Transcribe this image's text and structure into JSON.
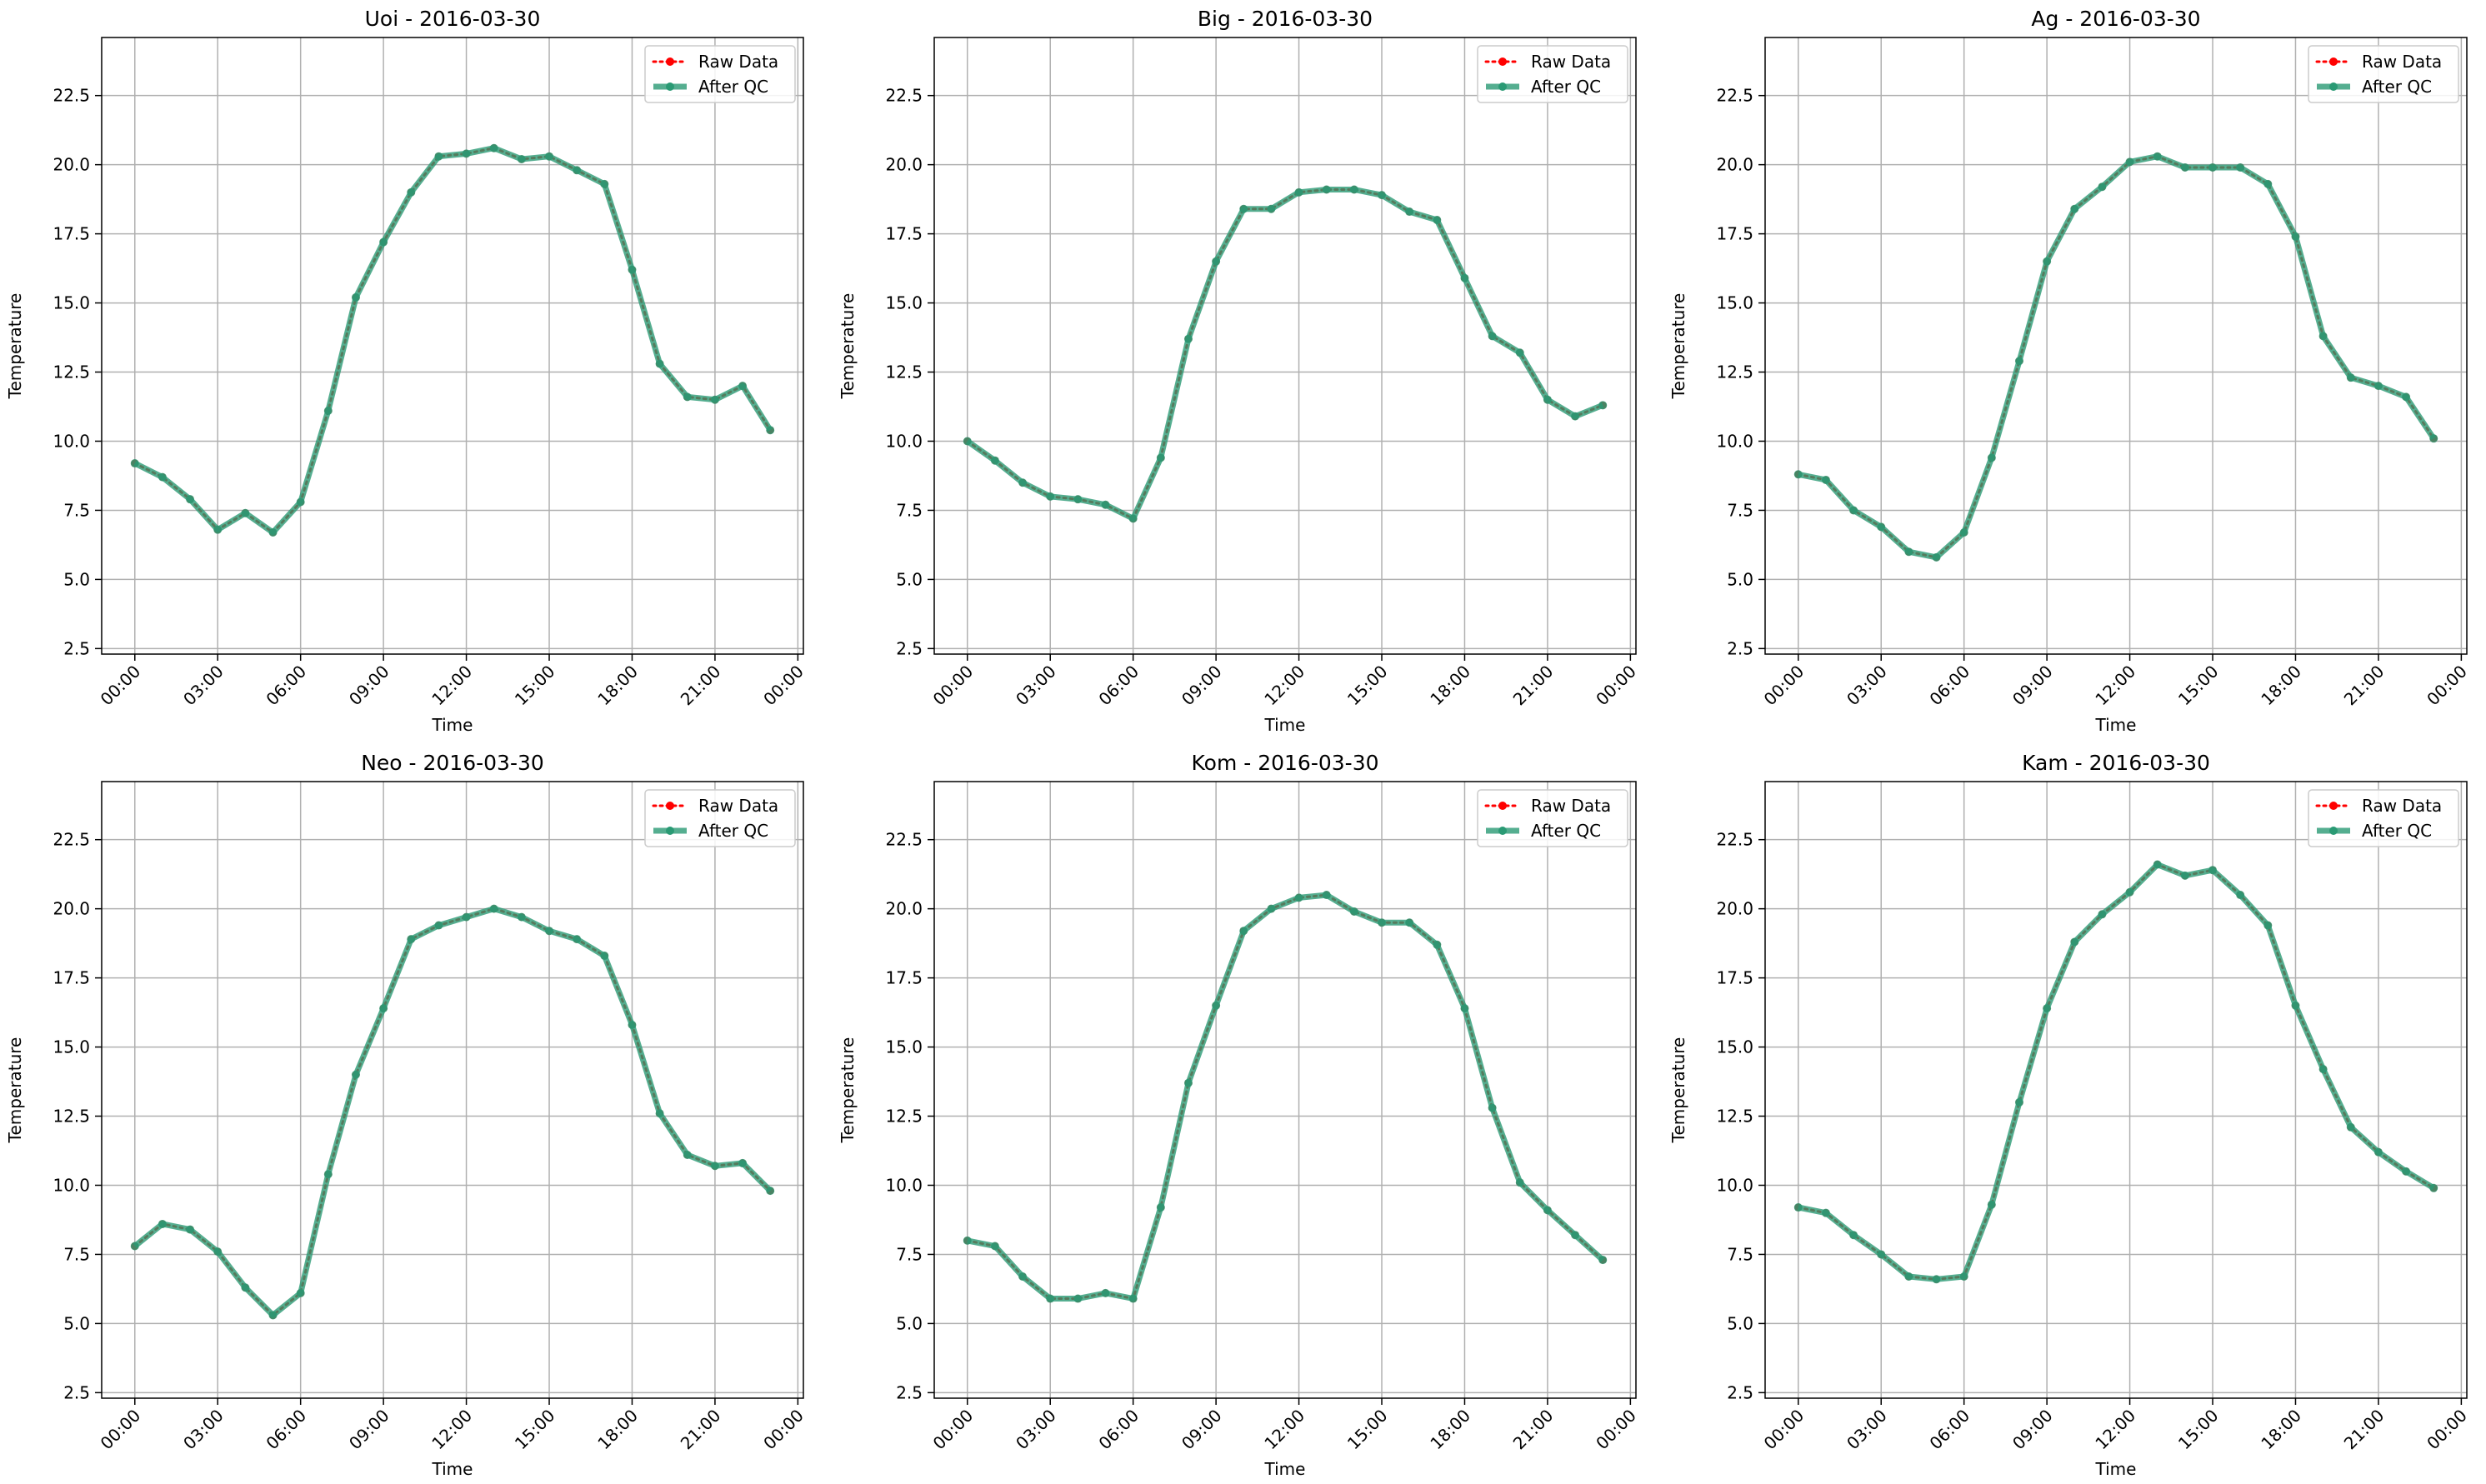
{
  "chart_data": [
    {
      "type": "line",
      "title": "Uoi - 2016-03-30",
      "xlabel": "Time",
      "ylabel": "Temperature",
      "x_ticks": [
        "00:00",
        "03:00",
        "06:00",
        "09:00",
        "12:00",
        "15:00",
        "18:00",
        "21:00",
        "00:00"
      ],
      "x_hours": [
        0,
        1,
        2,
        3,
        4,
        5,
        6,
        7,
        8,
        9,
        10,
        11,
        12,
        13,
        14,
        15,
        16,
        17,
        18,
        19,
        20,
        21,
        22,
        23
      ],
      "xlim": [
        -1.2,
        24.2
      ],
      "ylim": [
        2.3,
        24.6
      ],
      "y_ticks": [
        2.5,
        5.0,
        7.5,
        10.0,
        12.5,
        15.0,
        17.5,
        20.0,
        22.5
      ],
      "y_tick_labels": [
        "2.5",
        "5.0",
        "7.5",
        "10.0",
        "12.5",
        "15.0",
        "17.5",
        "20.0",
        "22.5"
      ],
      "grid": true,
      "legend": "top-right",
      "series": [
        {
          "name": "Raw Data",
          "color": "#ff0000",
          "values": [
            9.2,
            8.7,
            7.9,
            6.8,
            7.4,
            6.7,
            7.8,
            11.1,
            15.2,
            17.2,
            19.0,
            20.3,
            20.4,
            20.6,
            20.2,
            20.3,
            19.8,
            19.3,
            16.2,
            12.8,
            11.6,
            11.5,
            12.0,
            10.4
          ]
        },
        {
          "name": "After QC",
          "color": "#2a9a74",
          "values": [
            9.2,
            8.7,
            7.9,
            6.8,
            7.4,
            6.7,
            7.8,
            11.1,
            15.2,
            17.2,
            19.0,
            20.3,
            20.4,
            20.6,
            20.2,
            20.3,
            19.8,
            19.3,
            16.2,
            12.8,
            11.6,
            11.5,
            12.0,
            10.4
          ]
        }
      ]
    },
    {
      "type": "line",
      "title": "Big - 2016-03-30",
      "xlabel": "Time",
      "ylabel": "Temperature",
      "x_ticks": [
        "00:00",
        "03:00",
        "06:00",
        "09:00",
        "12:00",
        "15:00",
        "18:00",
        "21:00",
        "00:00"
      ],
      "x_hours": [
        0,
        1,
        2,
        3,
        4,
        5,
        6,
        7,
        8,
        9,
        10,
        11,
        12,
        13,
        14,
        15,
        16,
        17,
        18,
        19,
        20,
        21,
        22,
        23
      ],
      "xlim": [
        -1.2,
        24.2
      ],
      "ylim": [
        2.3,
        24.6
      ],
      "y_ticks": [
        2.5,
        5.0,
        7.5,
        10.0,
        12.5,
        15.0,
        17.5,
        20.0,
        22.5
      ],
      "y_tick_labels": [
        "2.5",
        "5.0",
        "7.5",
        "10.0",
        "12.5",
        "15.0",
        "17.5",
        "20.0",
        "22.5"
      ],
      "grid": true,
      "legend": "top-right",
      "series": [
        {
          "name": "Raw Data",
          "color": "#ff0000",
          "values": [
            10.0,
            9.3,
            8.5,
            8.0,
            7.9,
            7.7,
            7.2,
            9.4,
            13.7,
            16.5,
            18.4,
            18.4,
            19.0,
            19.1,
            19.1,
            18.9,
            18.3,
            18.0,
            15.9,
            13.8,
            13.2,
            11.5,
            10.9,
            11.3
          ]
        },
        {
          "name": "After QC",
          "color": "#2a9a74",
          "values": [
            10.0,
            9.3,
            8.5,
            8.0,
            7.9,
            7.7,
            7.2,
            9.4,
            13.7,
            16.5,
            18.4,
            18.4,
            19.0,
            19.1,
            19.1,
            18.9,
            18.3,
            18.0,
            15.9,
            13.8,
            13.2,
            11.5,
            10.9,
            11.3
          ]
        }
      ]
    },
    {
      "type": "line",
      "title": "Ag - 2016-03-30",
      "xlabel": "Time",
      "ylabel": "Temperature",
      "x_ticks": [
        "00:00",
        "03:00",
        "06:00",
        "09:00",
        "12:00",
        "15:00",
        "18:00",
        "21:00",
        "00:00"
      ],
      "x_hours": [
        0,
        1,
        2,
        3,
        4,
        5,
        6,
        7,
        8,
        9,
        10,
        11,
        12,
        13,
        14,
        15,
        16,
        17,
        18,
        19,
        20,
        21,
        22,
        23
      ],
      "xlim": [
        -1.2,
        24.2
      ],
      "ylim": [
        2.3,
        24.6
      ],
      "y_ticks": [
        2.5,
        5.0,
        7.5,
        10.0,
        12.5,
        15.0,
        17.5,
        20.0,
        22.5
      ],
      "y_tick_labels": [
        "2.5",
        "5.0",
        "7.5",
        "10.0",
        "12.5",
        "15.0",
        "17.5",
        "20.0",
        "22.5"
      ],
      "grid": true,
      "legend": "top-right",
      "series": [
        {
          "name": "Raw Data",
          "color": "#ff0000",
          "values": [
            8.8,
            8.6,
            7.5,
            6.9,
            6.0,
            5.8,
            6.7,
            9.4,
            12.9,
            16.5,
            18.4,
            19.2,
            20.1,
            20.3,
            19.9,
            19.9,
            19.9,
            19.3,
            17.4,
            13.8,
            12.3,
            12.0,
            11.6,
            10.1
          ]
        },
        {
          "name": "After QC",
          "color": "#2a9a74",
          "values": [
            8.8,
            8.6,
            7.5,
            6.9,
            6.0,
            5.8,
            6.7,
            9.4,
            12.9,
            16.5,
            18.4,
            19.2,
            20.1,
            20.3,
            19.9,
            19.9,
            19.9,
            19.3,
            17.4,
            13.8,
            12.3,
            12.0,
            11.6,
            10.1
          ]
        }
      ]
    },
    {
      "type": "line",
      "title": "Neo - 2016-03-30",
      "xlabel": "Time",
      "ylabel": "Temperature",
      "x_ticks": [
        "00:00",
        "03:00",
        "06:00",
        "09:00",
        "12:00",
        "15:00",
        "18:00",
        "21:00",
        "00:00"
      ],
      "x_hours": [
        0,
        1,
        2,
        3,
        4,
        5,
        6,
        7,
        8,
        9,
        10,
        11,
        12,
        13,
        14,
        15,
        16,
        17,
        18,
        19,
        20,
        21,
        22,
        23
      ],
      "xlim": [
        -1.2,
        24.2
      ],
      "ylim": [
        2.3,
        24.6
      ],
      "y_ticks": [
        2.5,
        5.0,
        7.5,
        10.0,
        12.5,
        15.0,
        17.5,
        20.0,
        22.5
      ],
      "y_tick_labels": [
        "2.5",
        "5.0",
        "7.5",
        "10.0",
        "12.5",
        "15.0",
        "17.5",
        "20.0",
        "22.5"
      ],
      "grid": true,
      "legend": "top-right",
      "series": [
        {
          "name": "Raw Data",
          "color": "#ff0000",
          "values": [
            7.8,
            8.6,
            8.4,
            7.6,
            6.3,
            5.3,
            6.1,
            10.4,
            14.0,
            16.4,
            18.9,
            19.4,
            19.7,
            20.0,
            19.7,
            19.2,
            18.9,
            18.3,
            15.8,
            12.6,
            11.1,
            10.7,
            10.8,
            9.8
          ]
        },
        {
          "name": "After QC",
          "color": "#2a9a74",
          "values": [
            7.8,
            8.6,
            8.4,
            7.6,
            6.3,
            5.3,
            6.1,
            10.4,
            14.0,
            16.4,
            18.9,
            19.4,
            19.7,
            20.0,
            19.7,
            19.2,
            18.9,
            18.3,
            15.8,
            12.6,
            11.1,
            10.7,
            10.8,
            9.8
          ]
        }
      ]
    },
    {
      "type": "line",
      "title": "Kom - 2016-03-30",
      "xlabel": "Time",
      "ylabel": "Temperature",
      "x_ticks": [
        "00:00",
        "03:00",
        "06:00",
        "09:00",
        "12:00",
        "15:00",
        "18:00",
        "21:00",
        "00:00"
      ],
      "x_hours": [
        0,
        1,
        2,
        3,
        4,
        5,
        6,
        7,
        8,
        9,
        10,
        11,
        12,
        13,
        14,
        15,
        16,
        17,
        18,
        19,
        20,
        21,
        22,
        23
      ],
      "xlim": [
        -1.2,
        24.2
      ],
      "ylim": [
        2.3,
        24.6
      ],
      "y_ticks": [
        2.5,
        5.0,
        7.5,
        10.0,
        12.5,
        15.0,
        17.5,
        20.0,
        22.5
      ],
      "y_tick_labels": [
        "2.5",
        "5.0",
        "7.5",
        "10.0",
        "12.5",
        "15.0",
        "17.5",
        "20.0",
        "22.5"
      ],
      "grid": true,
      "legend": "top-right",
      "series": [
        {
          "name": "Raw Data",
          "color": "#ff0000",
          "values": [
            8.0,
            7.8,
            6.7,
            5.9,
            5.9,
            6.1,
            5.9,
            9.2,
            13.7,
            16.5,
            19.2,
            20.0,
            20.4,
            20.5,
            19.9,
            19.5,
            19.5,
            18.7,
            16.4,
            12.8,
            10.1,
            9.1,
            8.2,
            7.3
          ]
        },
        {
          "name": "After QC",
          "color": "#2a9a74",
          "values": [
            8.0,
            7.8,
            6.7,
            5.9,
            5.9,
            6.1,
            5.9,
            9.2,
            13.7,
            16.5,
            19.2,
            20.0,
            20.4,
            20.5,
            19.9,
            19.5,
            19.5,
            18.7,
            16.4,
            12.8,
            10.1,
            9.1,
            8.2,
            7.3
          ]
        }
      ]
    },
    {
      "type": "line",
      "title": "Kam - 2016-03-30",
      "xlabel": "Time",
      "ylabel": "Temperature",
      "x_ticks": [
        "00:00",
        "03:00",
        "06:00",
        "09:00",
        "12:00",
        "15:00",
        "18:00",
        "21:00",
        "00:00"
      ],
      "x_hours": [
        0,
        1,
        2,
        3,
        4,
        5,
        6,
        7,
        8,
        9,
        10,
        11,
        12,
        13,
        14,
        15,
        16,
        17,
        18,
        19,
        20,
        21,
        22,
        23
      ],
      "xlim": [
        -1.2,
        24.2
      ],
      "ylim": [
        2.3,
        24.6
      ],
      "y_ticks": [
        2.5,
        5.0,
        7.5,
        10.0,
        12.5,
        15.0,
        17.5,
        20.0,
        22.5
      ],
      "y_tick_labels": [
        "2.5",
        "5.0",
        "7.5",
        "10.0",
        "12.5",
        "15.0",
        "17.5",
        "20.0",
        "22.5"
      ],
      "grid": true,
      "legend": "top-right",
      "series": [
        {
          "name": "Raw Data",
          "color": "#ff0000",
          "values": [
            9.2,
            9.0,
            8.2,
            7.5,
            6.7,
            6.6,
            6.7,
            9.3,
            13.0,
            16.4,
            18.8,
            19.8,
            20.6,
            21.6,
            21.2,
            21.4,
            20.5,
            19.4,
            16.5,
            14.2,
            12.1,
            11.2,
            10.5,
            9.9
          ]
        },
        {
          "name": "After QC",
          "color": "#2a9a74",
          "values": [
            9.2,
            9.0,
            8.2,
            7.5,
            6.7,
            6.6,
            6.7,
            9.3,
            13.0,
            16.4,
            18.8,
            19.8,
            20.6,
            21.6,
            21.2,
            21.4,
            20.5,
            19.4,
            16.5,
            14.2,
            12.1,
            11.2,
            10.5,
            9.9
          ]
        }
      ]
    }
  ]
}
